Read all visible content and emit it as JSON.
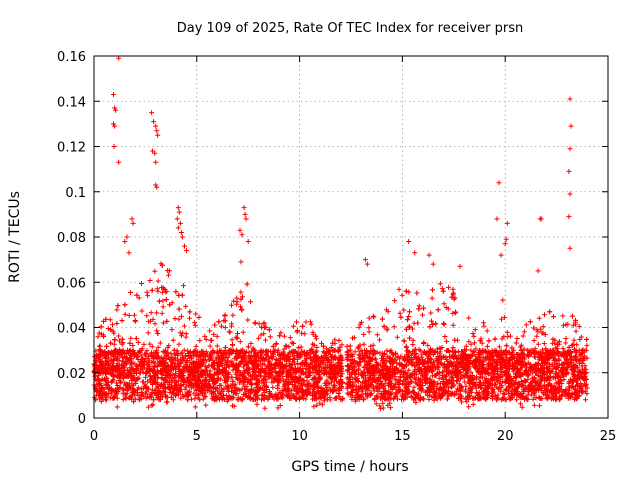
{
  "chart_data": {
    "type": "scatter",
    "title": "Day 109 of 2025, Rate Of TEC Index for receiver prsn",
    "xlabel": "GPS time / hours",
    "ylabel": "ROTI / TECUs",
    "xlim": [
      0,
      25
    ],
    "ylim": [
      0,
      0.16
    ],
    "xticks": [
      0,
      5,
      10,
      15,
      20,
      25
    ],
    "xtick_labels": [
      "0",
      "5",
      "10",
      "15",
      "20",
      "25"
    ],
    "yticks": [
      0,
      0.02,
      0.04,
      0.06,
      0.08,
      0.1,
      0.12,
      0.14,
      0.16
    ],
    "ytick_labels": [
      "0",
      "0.02",
      "0.04",
      "0.06",
      "0.08",
      "0.1",
      "0.12",
      "0.14",
      "0.16"
    ],
    "grid": true,
    "marker": "+",
    "color": "#ff0000",
    "series": [
      {
        "name": "ROTI",
        "sampling": "approximate reconstruction of a dense cloud (~6000 points)",
        "base_range": [
          0.008,
          0.03
        ],
        "gap_hours": [
          12.1,
          12.3
        ],
        "envelope": [
          [
            0,
            0.034
          ],
          [
            0.5,
            0.045
          ],
          [
            1,
            0.05
          ],
          [
            1.5,
            0.05
          ],
          [
            2,
            0.06
          ],
          [
            2.5,
            0.06
          ],
          [
            3,
            0.068
          ],
          [
            3.5,
            0.07
          ],
          [
            4,
            0.07
          ],
          [
            4.5,
            0.062
          ],
          [
            5,
            0.048
          ],
          [
            5.5,
            0.04
          ],
          [
            6,
            0.042
          ],
          [
            6.5,
            0.048
          ],
          [
            7,
            0.058
          ],
          [
            7.5,
            0.062
          ],
          [
            8,
            0.048
          ],
          [
            8.5,
            0.045
          ],
          [
            9,
            0.04
          ],
          [
            9.5,
            0.043
          ],
          [
            10,
            0.046
          ],
          [
            10.5,
            0.044
          ],
          [
            11,
            0.038
          ],
          [
            11.5,
            0.036
          ],
          [
            12,
            0.034
          ],
          [
            12.5,
            0.036
          ],
          [
            13,
            0.045
          ],
          [
            13.5,
            0.048
          ],
          [
            14,
            0.048
          ],
          [
            14.5,
            0.055
          ],
          [
            15,
            0.06
          ],
          [
            15.5,
            0.055
          ],
          [
            16,
            0.06
          ],
          [
            16.5,
            0.058
          ],
          [
            17,
            0.06
          ],
          [
            17.5,
            0.058
          ],
          [
            18,
            0.05
          ],
          [
            18.5,
            0.045
          ],
          [
            19,
            0.042
          ],
          [
            19.5,
            0.05
          ],
          [
            20,
            0.055
          ],
          [
            20.5,
            0.045
          ],
          [
            21,
            0.042
          ],
          [
            21.5,
            0.045
          ],
          [
            22,
            0.05
          ],
          [
            22.5,
            0.045
          ],
          [
            23,
            0.05
          ],
          [
            23.5,
            0.042
          ],
          [
            24,
            0.036
          ]
        ],
        "outliers": [
          [
            1.2,
            0.159
          ],
          [
            0.95,
            0.143
          ],
          [
            1.0,
            0.137
          ],
          [
            1.05,
            0.136
          ],
          [
            0.95,
            0.13
          ],
          [
            1.0,
            0.129
          ],
          [
            0.98,
            0.12
          ],
          [
            1.2,
            0.113
          ],
          [
            2.8,
            0.135
          ],
          [
            2.9,
            0.131
          ],
          [
            3.0,
            0.129
          ],
          [
            3.05,
            0.127
          ],
          [
            3.1,
            0.125
          ],
          [
            2.85,
            0.118
          ],
          [
            2.95,
            0.117
          ],
          [
            3.0,
            0.113
          ],
          [
            3.0,
            0.103
          ],
          [
            3.05,
            0.102
          ],
          [
            4.1,
            0.093
          ],
          [
            4.15,
            0.091
          ],
          [
            4.05,
            0.088
          ],
          [
            4.2,
            0.086
          ],
          [
            4.1,
            0.084
          ],
          [
            4.25,
            0.082
          ],
          [
            4.3,
            0.08
          ],
          [
            4.4,
            0.076
          ],
          [
            4.5,
            0.074
          ],
          [
            1.85,
            0.088
          ],
          [
            1.9,
            0.086
          ],
          [
            1.6,
            0.08
          ],
          [
            1.5,
            0.078
          ],
          [
            1.7,
            0.073
          ],
          [
            7.3,
            0.093
          ],
          [
            7.35,
            0.09
          ],
          [
            7.4,
            0.088
          ],
          [
            7.1,
            0.083
          ],
          [
            7.2,
            0.081
          ],
          [
            7.5,
            0.078
          ],
          [
            7.15,
            0.069
          ],
          [
            13.2,
            0.07
          ],
          [
            13.3,
            0.068
          ],
          [
            15.3,
            0.078
          ],
          [
            15.6,
            0.073
          ],
          [
            16.3,
            0.072
          ],
          [
            16.5,
            0.068
          ],
          [
            17.8,
            0.067
          ],
          [
            19.7,
            0.104
          ],
          [
            19.6,
            0.088
          ],
          [
            20.1,
            0.086
          ],
          [
            20.05,
            0.079
          ],
          [
            20.0,
            0.077
          ],
          [
            19.8,
            0.072
          ],
          [
            21.7,
            0.088
          ],
          [
            21.75,
            0.088
          ],
          [
            21.6,
            0.065
          ],
          [
            23.15,
            0.141
          ],
          [
            23.2,
            0.129
          ],
          [
            23.15,
            0.119
          ],
          [
            23.1,
            0.109
          ],
          [
            23.15,
            0.099
          ],
          [
            23.1,
            0.089
          ],
          [
            23.15,
            0.075
          ]
        ]
      }
    ]
  }
}
